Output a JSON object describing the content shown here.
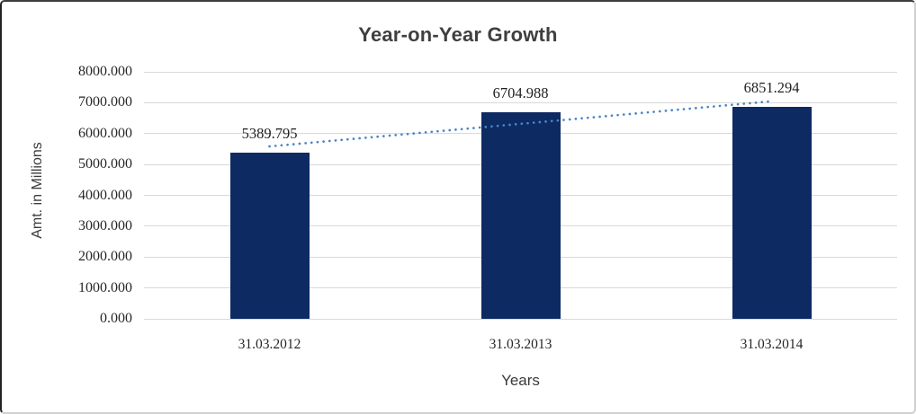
{
  "chart_data": {
    "type": "bar",
    "title": "Year-on-Year Growth",
    "xlabel": "Years",
    "ylabel": "Amt. in Millions",
    "categories": [
      "31.03.2012",
      "31.03.2013",
      "31.03.2014"
    ],
    "values": [
      5389.795,
      6704.988,
      6851.294
    ],
    "data_labels": [
      "5389.795",
      "6704.988",
      "6851.294"
    ],
    "ylim": [
      0,
      8000
    ],
    "ytick_step": 1000,
    "ytick_labels": [
      "0.000",
      "1000.000",
      "2000.000",
      "3000.000",
      "4000.000",
      "5000.000",
      "6000.000",
      "7000.000",
      "8000.000"
    ],
    "grid": true,
    "legend": "none",
    "trendline": {
      "type": "linear",
      "style": "dotted"
    },
    "colors": {
      "bar": "#0d2a63",
      "trendline": "#4a85c6",
      "gridline": "#d9d9d9",
      "title_text": "#3f3f3f",
      "label_text": "#1f1f1f",
      "background": "#ffffff"
    }
  }
}
